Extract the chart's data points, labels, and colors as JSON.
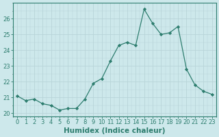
{
  "x": [
    0,
    1,
    2,
    3,
    4,
    5,
    6,
    7,
    8,
    9,
    10,
    11,
    12,
    13,
    14,
    15,
    16,
    17,
    18,
    19,
    20,
    21,
    22,
    23
  ],
  "y": [
    21.1,
    20.8,
    20.9,
    20.6,
    20.5,
    20.2,
    20.3,
    20.3,
    20.9,
    21.9,
    22.2,
    23.3,
    24.3,
    24.5,
    24.3,
    26.6,
    25.7,
    25.0,
    25.1,
    25.5,
    22.8,
    21.8,
    21.4,
    21.2
  ],
  "line_color": "#2d7d6e",
  "marker": "D",
  "marker_size": 2.2,
  "bg_color": "#cde8eb",
  "grid_major_color": "#b8d4d8",
  "grid_minor_color": "#cde8eb",
  "xlabel": "Humidex (Indice chaleur)",
  "xlim": [
    -0.5,
    23.5
  ],
  "ylim": [
    19.8,
    27.0
  ],
  "yticks": [
    20,
    21,
    22,
    23,
    24,
    25,
    26
  ],
  "xticks": [
    0,
    1,
    2,
    3,
    4,
    5,
    6,
    7,
    8,
    9,
    10,
    11,
    12,
    13,
    14,
    15,
    16,
    17,
    18,
    19,
    20,
    21,
    22,
    23
  ],
  "tick_fontsize": 6,
  "label_fontsize": 7.5
}
